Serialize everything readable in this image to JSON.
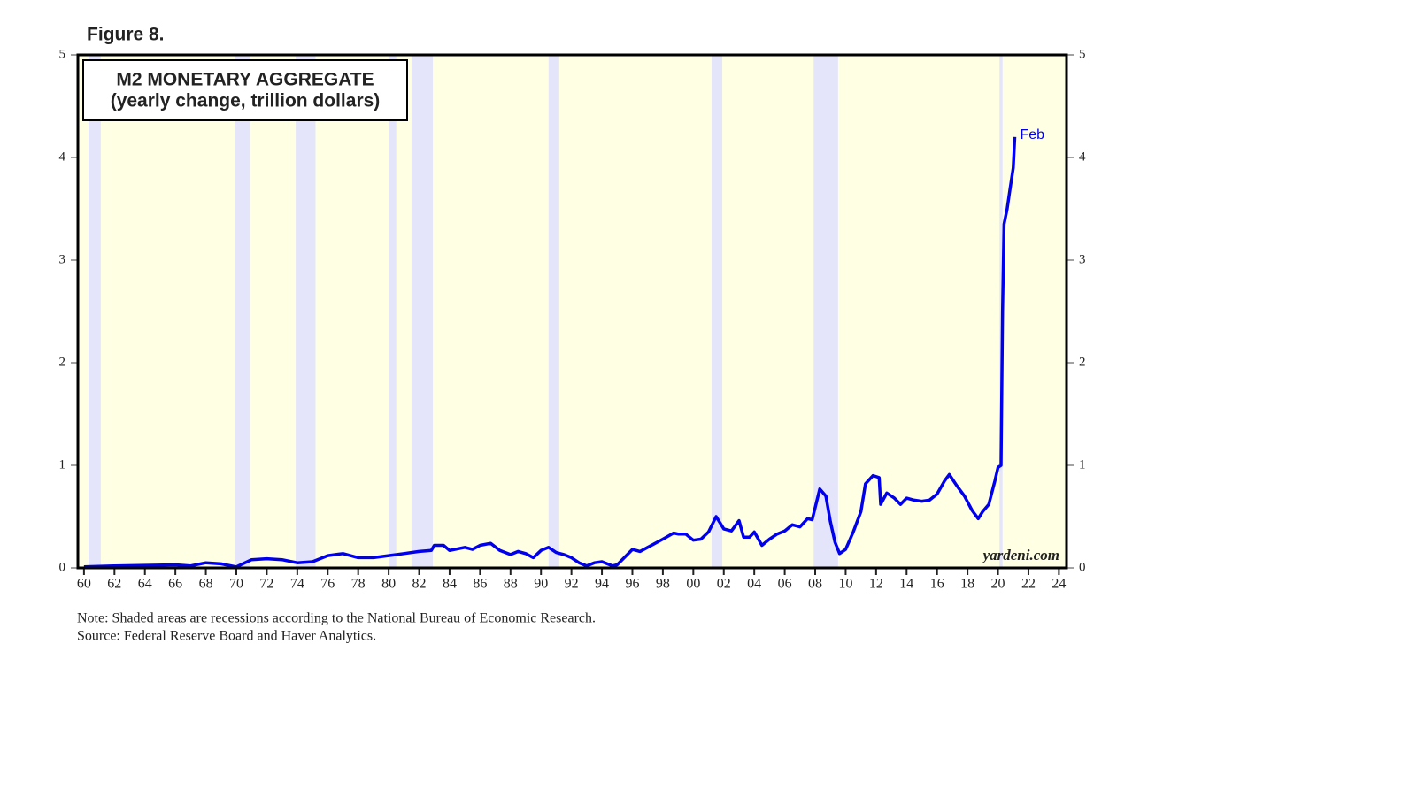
{
  "figure_label": "Figure 8.",
  "chart_data": {
    "type": "line",
    "title": "M2 MONETARY AGGREGATE",
    "subtitle": "(yearly change, trillion dollars)",
    "annotation": "Feb",
    "watermark": "yardeni.com",
    "note": "Note: Shaded areas are recessions according to the National Bureau of Economic Research.",
    "source": "Source: Federal Reserve Board and Haver Analytics.",
    "background_color": "#ffffe4",
    "recession_color": "#e4e4fa",
    "recessions": [
      [
        1960.3,
        1961.1
      ],
      [
        1969.9,
        1970.9
      ],
      [
        1973.9,
        1975.2
      ],
      [
        1980.0,
        1980.5
      ],
      [
        1981.5,
        1982.9
      ],
      [
        1990.5,
        1991.2
      ],
      [
        2001.2,
        2001.9
      ],
      [
        2007.9,
        2009.5
      ],
      [
        2020.1,
        2020.3
      ]
    ],
    "xlim": [
      1959.6,
      2024.5
    ],
    "xticks": [
      {
        "value": 1960,
        "label": "60"
      },
      {
        "value": 1962,
        "label": "62"
      },
      {
        "value": 1964,
        "label": "64"
      },
      {
        "value": 1966,
        "label": "66"
      },
      {
        "value": 1968,
        "label": "68"
      },
      {
        "value": 1970,
        "label": "70"
      },
      {
        "value": 1972,
        "label": "72"
      },
      {
        "value": 1974,
        "label": "74"
      },
      {
        "value": 1976,
        "label": "76"
      },
      {
        "value": 1978,
        "label": "78"
      },
      {
        "value": 1980,
        "label": "80"
      },
      {
        "value": 1982,
        "label": "82"
      },
      {
        "value": 1984,
        "label": "84"
      },
      {
        "value": 1986,
        "label": "86"
      },
      {
        "value": 1988,
        "label": "88"
      },
      {
        "value": 1990,
        "label": "90"
      },
      {
        "value": 1992,
        "label": "92"
      },
      {
        "value": 1994,
        "label": "94"
      },
      {
        "value": 1996,
        "label": "96"
      },
      {
        "value": 1998,
        "label": "98"
      },
      {
        "value": 2000,
        "label": "00"
      },
      {
        "value": 2002,
        "label": "02"
      },
      {
        "value": 2004,
        "label": "04"
      },
      {
        "value": 2006,
        "label": "06"
      },
      {
        "value": 2008,
        "label": "08"
      },
      {
        "value": 2010,
        "label": "10"
      },
      {
        "value": 2012,
        "label": "12"
      },
      {
        "value": 2014,
        "label": "14"
      },
      {
        "value": 2016,
        "label": "16"
      },
      {
        "value": 2018,
        "label": "18"
      },
      {
        "value": 2020,
        "label": "20"
      },
      {
        "value": 2022,
        "label": "22"
      },
      {
        "value": 2024,
        "label": "24"
      }
    ],
    "ylim": [
      0,
      5
    ],
    "yticks": [
      0,
      1,
      2,
      3,
      4,
      5
    ],
    "series": [
      {
        "color": "#0000ee",
        "x": [
          1960,
          1962,
          1964,
          1966,
          1967,
          1968,
          1969,
          1970,
          1971,
          1972,
          1973,
          1974,
          1975,
          1976,
          1977,
          1978,
          1979,
          1980,
          1981,
          1982,
          1982.8,
          1983,
          1983.6,
          1984,
          1985,
          1985.5,
          1986,
          1986.7,
          1987.3,
          1988,
          1988.5,
          1989,
          1989.5,
          1990,
          1990.5,
          1991,
          1991.5,
          1992,
          1992.5,
          1993,
          1993.5,
          1994,
          1994.7,
          1995,
          1996,
          1996.5,
          1997,
          1998,
          1998.7,
          1999,
          1999.5,
          2000,
          2000.5,
          2001,
          2001.5,
          2002,
          2002.5,
          2003,
          2003.3,
          2003.7,
          2004,
          2004.5,
          2005,
          2005.5,
          2006,
          2006.5,
          2007,
          2007.5,
          2007.8,
          2008.3,
          2008.7,
          2009,
          2009.3,
          2009.6,
          2010,
          2010.5,
          2011,
          2011.3,
          2011.8,
          2012.2,
          2012.3,
          2012.7,
          2013.2,
          2013.6,
          2014,
          2014.5,
          2015,
          2015.5,
          2016,
          2016.5,
          2016.8,
          2017.3,
          2017.8,
          2018.3,
          2018.7,
          2019,
          2019.4,
          2019.8,
          2020,
          2020.2,
          2020.3,
          2020.4,
          2020.6,
          2020.8,
          2021.0,
          2021.1
        ],
        "values": [
          0.01,
          0.02,
          0.025,
          0.03,
          0.02,
          0.05,
          0.04,
          0.01,
          0.08,
          0.09,
          0.08,
          0.05,
          0.06,
          0.12,
          0.14,
          0.1,
          0.1,
          0.12,
          0.14,
          0.16,
          0.17,
          0.22,
          0.22,
          0.17,
          0.2,
          0.18,
          0.22,
          0.24,
          0.17,
          0.13,
          0.16,
          0.14,
          0.1,
          0.17,
          0.2,
          0.15,
          0.13,
          0.1,
          0.05,
          0.02,
          0.05,
          0.06,
          0.02,
          0.03,
          0.18,
          0.16,
          0.2,
          0.28,
          0.34,
          0.33,
          0.33,
          0.27,
          0.28,
          0.35,
          0.5,
          0.38,
          0.36,
          0.46,
          0.3,
          0.3,
          0.35,
          0.22,
          0.28,
          0.33,
          0.36,
          0.42,
          0.4,
          0.48,
          0.47,
          0.77,
          0.7,
          0.45,
          0.25,
          0.14,
          0.18,
          0.35,
          0.55,
          0.82,
          0.9,
          0.88,
          0.62,
          0.73,
          0.68,
          0.62,
          0.68,
          0.66,
          0.65,
          0.66,
          0.72,
          0.85,
          0.91,
          0.8,
          0.7,
          0.56,
          0.48,
          0.55,
          0.62,
          0.85,
          0.98,
          1.0,
          2.5,
          3.35,
          3.5,
          3.7,
          3.9,
          4.2
        ]
      }
    ]
  }
}
